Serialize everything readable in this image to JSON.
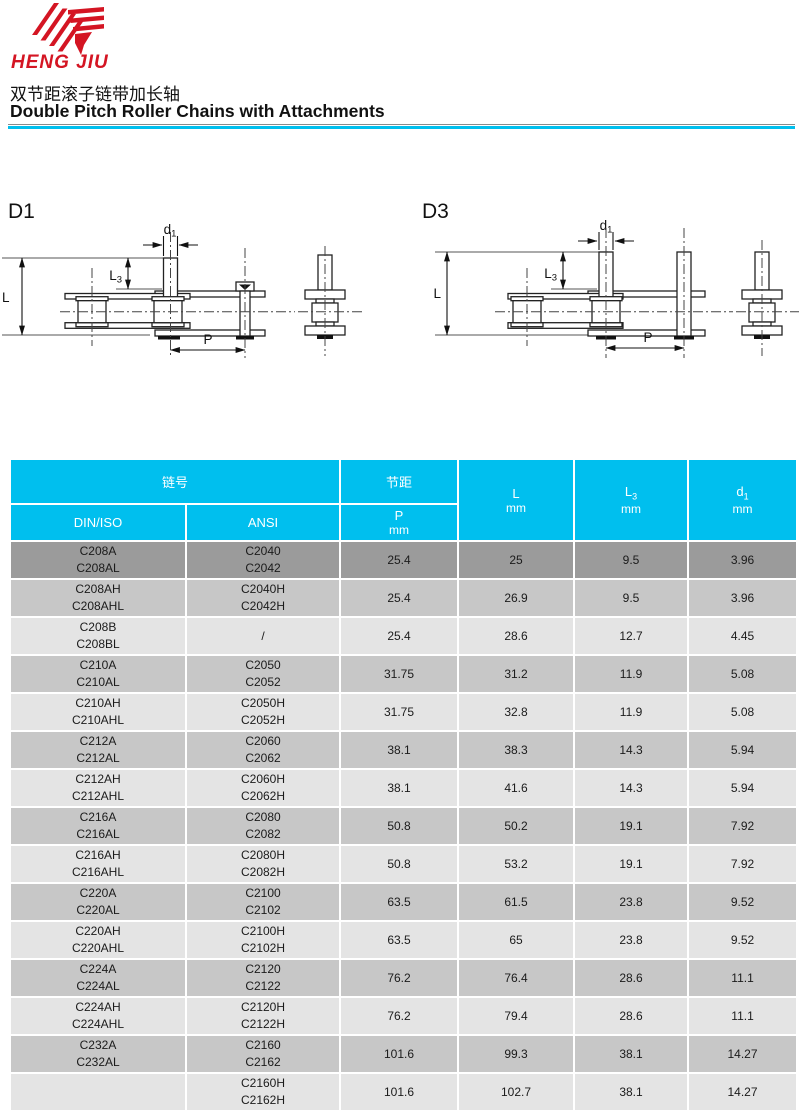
{
  "brand": {
    "name": "HENG JIU"
  },
  "header": {
    "title_zh": "双节距滚子链带加长轴",
    "title_en": "Double Pitch Roller Chains with Attachments"
  },
  "diagrams": {
    "d1_label": "D1",
    "d3_label": "D3",
    "dims": {
      "d1_base": "d",
      "d1_sub": "1",
      "l3_base": "L",
      "l3_sub": "3",
      "l": "L",
      "p": "P"
    }
  },
  "table": {
    "headers": {
      "chain_no": "链号",
      "pitch": "节距",
      "din_iso": "DIN/ISO",
      "ansi": "ANSI",
      "p": "P",
      "l": "L",
      "l3_base": "L",
      "l3_sub": "3",
      "d1_base": "d",
      "d1_sub": "1",
      "unit_mm": "mm"
    },
    "rows": [
      {
        "shade": "dark",
        "din": [
          "C208A",
          "C208AL"
        ],
        "ansi": [
          "C2040",
          "C2042"
        ],
        "p": "25.4",
        "l": "25",
        "l3": "9.5",
        "d1": "3.96"
      },
      {
        "shade": "mid",
        "din": [
          "C208AH",
          "C208AHL"
        ],
        "ansi": [
          "C2040H",
          "C2042H"
        ],
        "p": "25.4",
        "l": "26.9",
        "l3": "9.5",
        "d1": "3.96"
      },
      {
        "shade": "light",
        "din": [
          "C208B",
          "C208BL"
        ],
        "ansi": [
          "/"
        ],
        "p": "25.4",
        "l": "28.6",
        "l3": "12.7",
        "d1": "4.45"
      },
      {
        "shade": "mid",
        "din": [
          "C210A",
          "C210AL"
        ],
        "ansi": [
          "C2050",
          "C2052"
        ],
        "p": "31.75",
        "l": "31.2",
        "l3": "11.9",
        "d1": "5.08"
      },
      {
        "shade": "light",
        "din": [
          "C210AH",
          "C210AHL"
        ],
        "ansi": [
          "C2050H",
          "C2052H"
        ],
        "p": "31.75",
        "l": "32.8",
        "l3": "11.9",
        "d1": "5.08"
      },
      {
        "shade": "mid",
        "din": [
          "C212A",
          "C212AL"
        ],
        "ansi": [
          "C2060",
          "C2062"
        ],
        "p": "38.1",
        "l": "38.3",
        "l3": "14.3",
        "d1": "5.94"
      },
      {
        "shade": "light",
        "din": [
          "C212AH",
          "C212AHL"
        ],
        "ansi": [
          "C2060H",
          "C2062H"
        ],
        "p": "38.1",
        "l": "41.6",
        "l3": "14.3",
        "d1": "5.94"
      },
      {
        "shade": "mid",
        "din": [
          "C216A",
          "C216AL"
        ],
        "ansi": [
          "C2080",
          "C2082"
        ],
        "p": "50.8",
        "l": "50.2",
        "l3": "19.1",
        "d1": "7.92"
      },
      {
        "shade": "light",
        "din": [
          "C216AH",
          "C216AHL"
        ],
        "ansi": [
          "C2080H",
          "C2082H"
        ],
        "p": "50.8",
        "l": "53.2",
        "l3": "19.1",
        "d1": "7.92"
      },
      {
        "shade": "mid",
        "din": [
          "C220A",
          "C220AL"
        ],
        "ansi": [
          "C2100",
          "C2102"
        ],
        "p": "63.5",
        "l": "61.5",
        "l3": "23.8",
        "d1": "9.52"
      },
      {
        "shade": "light",
        "din": [
          "C220AH",
          "C220AHL"
        ],
        "ansi": [
          "C2100H",
          "C2102H"
        ],
        "p": "63.5",
        "l": "65",
        "l3": "23.8",
        "d1": "9.52"
      },
      {
        "shade": "mid",
        "din": [
          "C224A",
          "C224AL"
        ],
        "ansi": [
          "C2120",
          "C2122"
        ],
        "p": "76.2",
        "l": "76.4",
        "l3": "28.6",
        "d1": "11.1"
      },
      {
        "shade": "light",
        "din": [
          "C224AH",
          "C224AHL"
        ],
        "ansi": [
          "C2120H",
          "C2122H"
        ],
        "p": "76.2",
        "l": "79.4",
        "l3": "28.6",
        "d1": "11.1"
      },
      {
        "shade": "mid",
        "din": [
          "C232A",
          "C232AL"
        ],
        "ansi": [
          "C2160",
          "C2162"
        ],
        "p": "101.6",
        "l": "99.3",
        "l3": "38.1",
        "d1": "14.27"
      },
      {
        "shade": "light",
        "din": [
          ""
        ],
        "ansi": [
          "C2160H",
          "C2162H"
        ],
        "p": "101.6",
        "l": "102.7",
        "l3": "38.1",
        "d1": "14.27"
      }
    ]
  },
  "colors": {
    "accent_cyan": "#00bfee",
    "brand_red": "#d41523",
    "row_dark": "#9b9b9b",
    "row_mid": "#c7c7c7",
    "row_light": "#e4e4e4"
  }
}
